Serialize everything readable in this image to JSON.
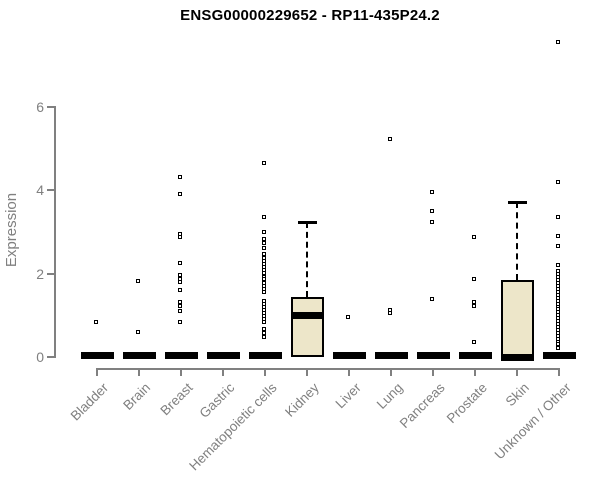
{
  "title": "ENSG00000229652 - RP11-435P24.2",
  "chart_data": {
    "type": "boxplot",
    "title": "ENSG00000229652 - RP11-435P24.2",
    "xlabel": "",
    "ylabel": "Expression",
    "yticks": [
      0,
      2,
      4,
      6
    ],
    "ylim": [
      0,
      6
    ],
    "grid": false,
    "legend": "none",
    "box_fill_color": "#EDE6C9",
    "axis_color": "#808080",
    "point_color": "#000000",
    "categories": [
      "Bladder",
      "Brain",
      "Breast",
      "Gastric",
      "Hematopoietic cells",
      "Kidney",
      "Liver",
      "Lung",
      "Pancreas",
      "Prostate",
      "Skin",
      "Unknown / Other"
    ],
    "series": [
      {
        "name": "Bladder",
        "q1": 0,
        "median": 0,
        "q3": 0,
        "whisker_low": 0,
        "whisker_high": 0,
        "outliers": [
          0.84
        ]
      },
      {
        "name": "Brain",
        "q1": 0,
        "median": 0,
        "q3": 0,
        "whisker_low": 0,
        "whisker_high": 0,
        "outliers": [
          1.82,
          0.58
        ]
      },
      {
        "name": "Breast",
        "q1": 0,
        "median": 0,
        "q3": 0,
        "whisker_low": 0,
        "whisker_high": 0,
        "outliers": [
          4.3,
          3.9,
          2.95,
          2.87,
          2.25,
          1.95,
          1.87,
          1.78,
          1.6,
          1.32,
          1.22,
          1.1,
          0.82
        ]
      },
      {
        "name": "Gastric",
        "q1": 0,
        "median": 0,
        "q3": 0,
        "whisker_low": 0,
        "whisker_high": 0,
        "outliers": []
      },
      {
        "name": "Hematopoietic cells",
        "q1": 0,
        "median": 0,
        "q3": 0,
        "whisker_low": 0,
        "whisker_high": 0,
        "outliers": [
          4.65,
          3.35,
          3.0,
          2.82,
          2.72,
          2.6,
          2.45,
          2.37,
          2.3,
          2.22,
          2.15,
          2.07,
          2.0,
          1.92,
          1.85,
          1.77,
          1.7,
          1.62,
          1.55,
          1.33,
          1.26,
          1.19,
          1.12,
          1.05,
          0.98,
          0.91,
          0.84,
          0.65,
          0.56,
          0.47
        ]
      },
      {
        "name": "Kidney",
        "q1": 0,
        "median": 1.0,
        "q3": 1.43,
        "whisker_low": 0,
        "whisker_high": 3.25,
        "outliers": []
      },
      {
        "name": "Liver",
        "q1": 0,
        "median": 0,
        "q3": 0,
        "whisker_low": 0,
        "whisker_high": 0,
        "outliers": [
          0.96
        ]
      },
      {
        "name": "Lung",
        "q1": 0,
        "median": 0,
        "q3": 0,
        "whisker_low": 0,
        "whisker_high": 0,
        "outliers": [
          5.23,
          1.12,
          1.04
        ]
      },
      {
        "name": "Pancreas",
        "q1": 0,
        "median": 0,
        "q3": 0,
        "whisker_low": 0,
        "whisker_high": 0,
        "outliers": [
          3.94,
          3.5,
          3.22,
          1.37
        ]
      },
      {
        "name": "Prostate",
        "q1": 0,
        "median": 0,
        "q3": 0,
        "whisker_low": 0,
        "whisker_high": 0,
        "outliers": [
          2.86,
          1.87,
          1.3,
          1.21,
          0.36
        ]
      },
      {
        "name": "Skin",
        "q1": 0,
        "median": 0,
        "q3": 1.85,
        "whisker_low": 0,
        "whisker_high": 3.72,
        "outliers": []
      },
      {
        "name": "Unknown / Other",
        "q1": 0,
        "median": 0,
        "q3": 0,
        "whisker_low": 0,
        "whisker_high": 0,
        "outliers": [
          7.55,
          4.2,
          3.35,
          2.9,
          2.65,
          2.2,
          2.05,
          1.97,
          1.9,
          1.83,
          1.76,
          1.69,
          1.62,
          1.55,
          1.48,
          1.41,
          1.34,
          1.27,
          1.2,
          1.13,
          1.06,
          0.99,
          0.92,
          0.85,
          0.78,
          0.71,
          0.64,
          0.57,
          0.5,
          0.43,
          0.36,
          0.29,
          0.2
        ]
      }
    ]
  }
}
